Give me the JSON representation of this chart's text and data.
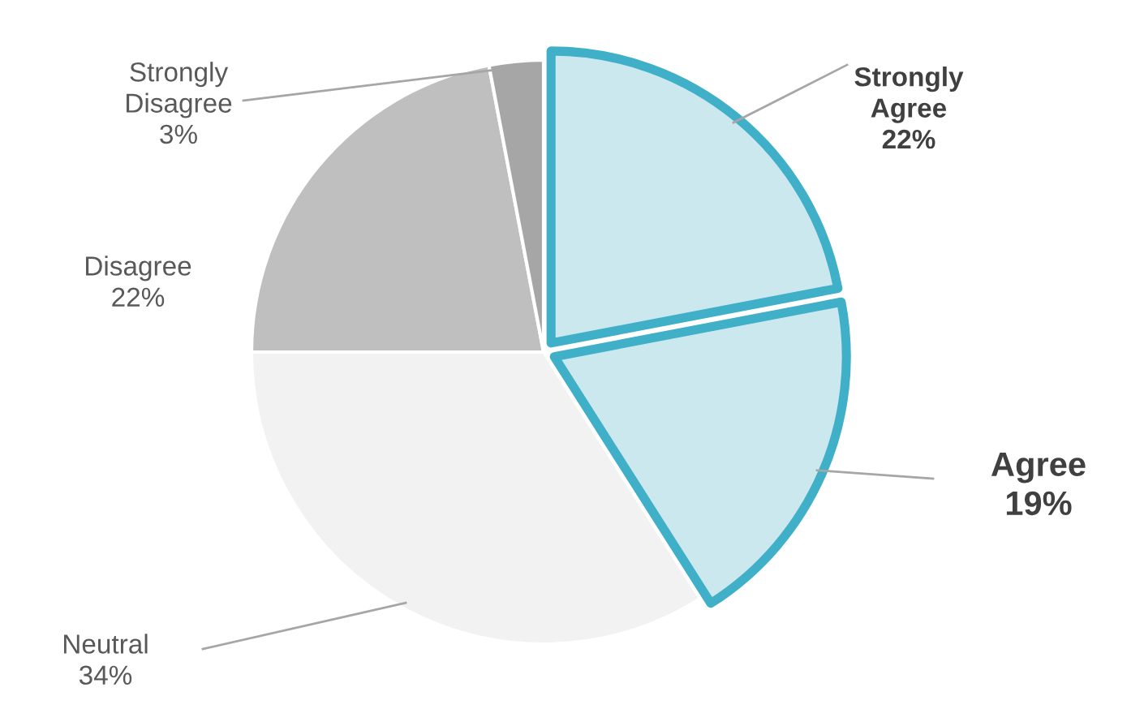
{
  "chart_data": {
    "type": "pie",
    "categories": [
      "Strongly\nAgree",
      "Agree",
      "Neutral",
      "Disagree",
      "Strongly\nDisagree"
    ],
    "values": [
      22,
      19,
      34,
      22,
      3
    ],
    "value_labels": [
      "22%",
      "19%",
      "34%",
      "22%",
      "3%"
    ],
    "colors": [
      "#cce8ef",
      "#cce8ef",
      "#f2f2f2",
      "#bfbfbf",
      "#a6a6a6"
    ]
  }
}
